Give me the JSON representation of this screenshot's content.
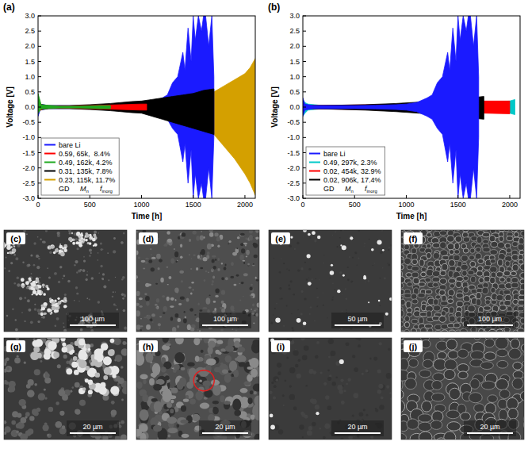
{
  "chart_data": [
    {
      "type": "area",
      "panel": "(a)",
      "xlabel": "Time [h]",
      "ylabel": "Voltage [V]",
      "xlim": [
        0,
        2100
      ],
      "ylim": [
        -3,
        3
      ],
      "xticks": [
        0,
        500,
        1000,
        1500,
        2000
      ],
      "yticks": [
        {
          "value": -3,
          "label": "-3.0"
        },
        {
          "value": -2.5,
          "label": "-2.5"
        },
        {
          "value": -2,
          "label": "-2.0"
        },
        {
          "value": -1.5,
          "label": "-1.5"
        },
        {
          "value": -1,
          "label": "-1.0"
        },
        {
          "value": -0.5,
          "label": "-0.5"
        },
        {
          "value": 0,
          "label": "0.0"
        },
        {
          "value": 0.5,
          "label": "0.5"
        },
        {
          "value": 1,
          "label": "1.0"
        },
        {
          "value": 1.5,
          "label": "1.5"
        },
        {
          "value": 2,
          "label": "2.0"
        },
        {
          "value": 2.5,
          "label": "2.5"
        },
        {
          "value": 3,
          "label": "3.0"
        }
      ],
      "grid": false,
      "legend": "lower left",
      "legend_heads": [
        {
          "text": "GD"
        },
        {
          "text": "M",
          "sub": "n"
        },
        {
          "text": "f",
          "sub": "inorg"
        }
      ],
      "series": [
        {
          "name": "bare Li",
          "color": "#1a1aff",
          "x": [
            0,
            20,
            100,
            300,
            500,
            700,
            900,
            1000,
            1100,
            1200,
            1250,
            1300,
            1350,
            1400,
            1420,
            1450,
            1480,
            1500,
            1520,
            1550,
            1580,
            1600,
            1620,
            1650,
            1680,
            1700
          ],
          "upper": [
            0.3,
            0.1,
            0.05,
            0.05,
            0.05,
            0.06,
            0.08,
            0.1,
            0.15,
            0.3,
            0.4,
            0.8,
            1.0,
            1.8,
            1.2,
            2.6,
            1.5,
            3.0,
            2.2,
            3.0,
            2.5,
            3.0,
            3.0,
            2.0,
            3.0,
            1.0
          ],
          "lower": [
            -0.3,
            -0.1,
            -0.05,
            -0.05,
            -0.05,
            -0.06,
            -0.08,
            -0.1,
            -0.15,
            -0.3,
            -0.4,
            -0.7,
            -0.9,
            -1.8,
            -1.2,
            -2.5,
            -1.4,
            -3.0,
            -2.2,
            -3.0,
            -2.5,
            -3.0,
            -3.0,
            -2.0,
            -3.0,
            -1.0
          ]
        },
        {
          "name": "0.59, 65k,  8.4%",
          "color": "#ff0000",
          "x": [
            0,
            50,
            200,
            500,
            800,
            1000,
            1050
          ],
          "upper": [
            0.15,
            0.05,
            0.03,
            0.05,
            0.08,
            0.1,
            0.1
          ],
          "lower": [
            -0.15,
            -0.05,
            -0.03,
            -0.05,
            -0.08,
            -0.1,
            -0.1
          ]
        },
        {
          "name": "0.49, 162k, 4.2%",
          "color": "#1fa81f",
          "x": [
            0,
            30,
            200,
            400,
            600,
            700
          ],
          "upper": [
            0.45,
            0.08,
            0.03,
            0.03,
            0.05,
            0.05
          ],
          "lower": [
            -0.2,
            -0.06,
            -0.03,
            -0.03,
            -0.05,
            -0.05
          ]
        },
        {
          "name": "0.31, 135k, 7.8%",
          "color": "#000000",
          "x": [
            0,
            100,
            300,
            500,
            700,
            900,
            1000,
            1100,
            1200,
            1300,
            1400,
            1500,
            1600,
            1700
          ],
          "upper": [
            0.1,
            0.05,
            0.05,
            0.08,
            0.12,
            0.18,
            0.2,
            0.25,
            0.3,
            0.35,
            0.4,
            0.45,
            0.55,
            0.6
          ],
          "lower": [
            -0.1,
            -0.05,
            -0.05,
            -0.08,
            -0.12,
            -0.18,
            -0.2,
            -0.3,
            -0.4,
            -0.5,
            -0.6,
            -0.7,
            -0.8,
            -0.9
          ]
        },
        {
          "name": "0.23, 115k, 11.7%",
          "color": "#d4a000",
          "x": [
            0,
            200,
            500,
            800,
            1000,
            1200,
            1400,
            1600,
            1700,
            1800,
            1900,
            2000,
            2050,
            2100
          ],
          "upper": [
            0.05,
            0.03,
            0.04,
            0.06,
            0.1,
            0.15,
            0.25,
            0.4,
            0.5,
            0.7,
            0.9,
            1.1,
            1.3,
            1.6
          ],
          "lower": [
            -0.05,
            -0.03,
            -0.05,
            -0.08,
            -0.15,
            -0.25,
            -0.4,
            -0.7,
            -0.9,
            -1.3,
            -1.7,
            -2.2,
            -2.5,
            -2.9
          ]
        }
      ]
    },
    {
      "type": "area",
      "panel": "(b)",
      "xlabel": "Time [h]",
      "ylabel": "Voltage [V]",
      "xlim": [
        0,
        2100
      ],
      "ylim": [
        -3,
        3
      ],
      "xticks": [
        0,
        500,
        1000,
        1500,
        2000
      ],
      "yticks": [
        {
          "value": -3,
          "label": "-3.0"
        },
        {
          "value": -2.5,
          "label": "-2.5"
        },
        {
          "value": -2,
          "label": "-2.0"
        },
        {
          "value": -1.5,
          "label": "-1.5"
        },
        {
          "value": -1,
          "label": "-1.0"
        },
        {
          "value": -0.5,
          "label": "-0.5"
        },
        {
          "value": 0,
          "label": "0.0"
        },
        {
          "value": 0.5,
          "label": "0.5"
        },
        {
          "value": 1,
          "label": "1.0"
        },
        {
          "value": 1.5,
          "label": "1.5"
        },
        {
          "value": 2,
          "label": "2.0"
        },
        {
          "value": 2.5,
          "label": "2.5"
        },
        {
          "value": 3,
          "label": "3.0"
        }
      ],
      "grid": false,
      "legend": "lower left",
      "legend_heads": [
        {
          "text": "GD"
        },
        {
          "text": "M",
          "sub": "n"
        },
        {
          "text": "f",
          "sub": "inorg"
        }
      ],
      "series": [
        {
          "name": "bare Li",
          "color": "#1a1aff",
          "x": [
            0,
            20,
            100,
            300,
            500,
            700,
            900,
            1000,
            1100,
            1200,
            1250,
            1300,
            1350,
            1400,
            1420,
            1450,
            1480,
            1500,
            1520,
            1550,
            1580,
            1600,
            1620,
            1650,
            1680,
            1700
          ],
          "upper": [
            0.3,
            0.1,
            0.05,
            0.05,
            0.05,
            0.06,
            0.08,
            0.1,
            0.15,
            0.3,
            0.4,
            0.8,
            1.0,
            1.8,
            1.2,
            2.6,
            1.5,
            3.0,
            2.2,
            3.0,
            2.5,
            3.0,
            3.0,
            2.0,
            3.0,
            1.0
          ],
          "lower": [
            -0.3,
            -0.1,
            -0.05,
            -0.05,
            -0.05,
            -0.06,
            -0.08,
            -0.1,
            -0.15,
            -0.3,
            -0.4,
            -0.7,
            -0.9,
            -1.8,
            -1.2,
            -2.5,
            -1.4,
            -3.0,
            -2.2,
            -3.0,
            -2.5,
            -3.0,
            -3.0,
            -2.0,
            -3.0,
            -1.0
          ]
        },
        {
          "name": "0.49, 297k, 2.3%",
          "color": "#00c8c8",
          "x": [
            0,
            20,
            50,
            200,
            500,
            1000,
            1500,
            2000,
            2050
          ],
          "upper": [
            0.25,
            0.15,
            0.1,
            0.05,
            0.05,
            0.06,
            0.1,
            0.2,
            0.25
          ],
          "lower": [
            -0.3,
            -0.2,
            -0.1,
            -0.05,
            -0.05,
            -0.06,
            -0.1,
            -0.2,
            -0.25
          ]
        },
        {
          "name": "0.02, 454k, 32.9%",
          "color": "#ff0000",
          "x": [
            0,
            50,
            500,
            1000,
            1500,
            1750,
            2000
          ],
          "upper": [
            0.05,
            0.05,
            0.07,
            0.1,
            0.15,
            0.2,
            0.2
          ],
          "lower": [
            -0.1,
            -0.05,
            -0.08,
            -0.12,
            -0.18,
            -0.2,
            -0.22
          ]
        },
        {
          "name": "0.02, 906k, 17.4%",
          "color": "#000000",
          "x": [
            0,
            50,
            300,
            600,
            900,
            1200,
            1400,
            1600,
            1750
          ],
          "upper": [
            0.1,
            0.05,
            0.06,
            0.08,
            0.12,
            0.18,
            0.25,
            0.3,
            0.35
          ],
          "lower": [
            -0.1,
            -0.05,
            -0.07,
            -0.1,
            -0.15,
            -0.22,
            -0.3,
            -0.35,
            -0.4
          ]
        }
      ]
    }
  ],
  "images": [
    {
      "label": "(c)",
      "scale_bar": "100 µm"
    },
    {
      "label": "(d)",
      "scale_bar": "100 µm"
    },
    {
      "label": "(e)",
      "scale_bar": "50 µm"
    },
    {
      "label": "(f)",
      "scale_bar": "100 µm"
    },
    {
      "label": "(g)",
      "scale_bar": "20 µm"
    },
    {
      "label": "(h)",
      "scale_bar": "20 µm"
    },
    {
      "label": "(i)",
      "scale_bar": "20 µm"
    },
    {
      "label": "(j)",
      "scale_bar": "20 µm"
    }
  ]
}
